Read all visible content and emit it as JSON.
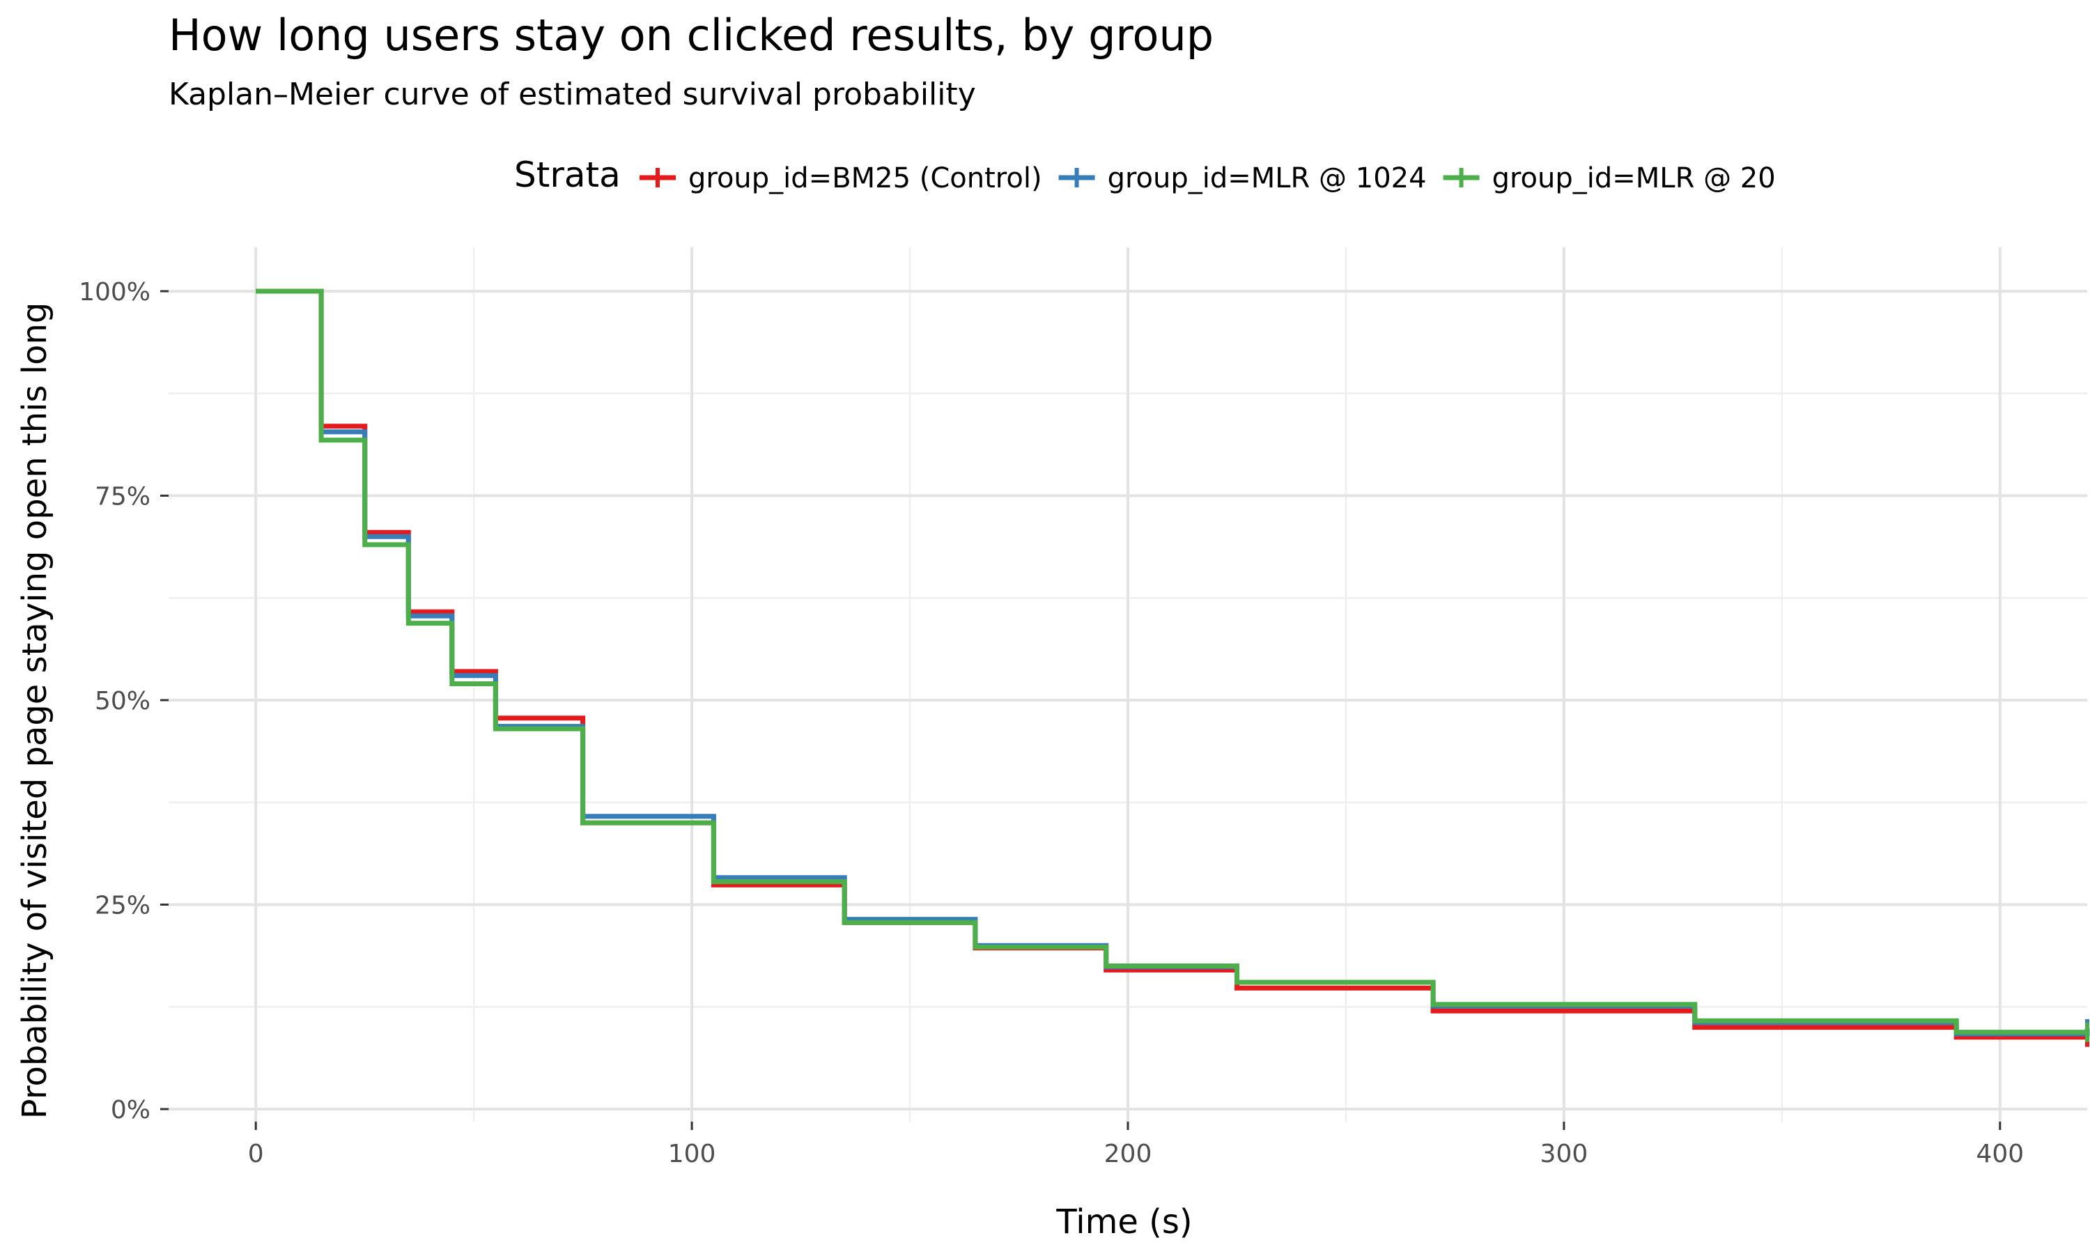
{
  "chart_data": {
    "type": "line",
    "step": true,
    "title": "How long users stay on clicked results, by group",
    "subtitle": "Kaplan–Meier curve of estimated survival probability",
    "xlabel": "Time (s)",
    "ylabel": "Probability of visited page staying open this long",
    "xlim": [
      -20,
      420
    ],
    "ylim": [
      0,
      1
    ],
    "x_ticks": [
      0,
      100,
      200,
      300,
      400
    ],
    "x_tick_labels": [
      "0",
      "100",
      "200",
      "300",
      "400"
    ],
    "y_ticks": [
      0,
      0.25,
      0.5,
      0.75,
      1
    ],
    "y_tick_labels": [
      "0%",
      "25%",
      "50%",
      "75%",
      "100%"
    ],
    "grid": true,
    "legend": {
      "title": "Strata",
      "position": "top"
    },
    "series": [
      {
        "name": "group_id=BM25 (Control)",
        "color": "#e41a1c",
        "x": [
          0,
          15,
          25,
          35,
          45,
          55,
          75,
          105,
          135,
          165,
          195,
          225,
          270,
          330,
          390,
          420
        ],
        "y": [
          1.0,
          0.835,
          0.705,
          0.608,
          0.535,
          0.478,
          0.35,
          0.274,
          0.228,
          0.197,
          0.17,
          0.148,
          0.12,
          0.1,
          0.088,
          0.088
        ]
      },
      {
        "name": "group_id=MLR @ 1024",
        "color": "#377eb8",
        "x": [
          0,
          15,
          25,
          35,
          45,
          55,
          75,
          105,
          135,
          165,
          195,
          225,
          270,
          330,
          390,
          420
        ],
        "y": [
          1.0,
          0.828,
          0.7,
          0.603,
          0.53,
          0.468,
          0.358,
          0.283,
          0.232,
          0.2,
          0.174,
          0.155,
          0.126,
          0.106,
          0.092,
          0.098
        ]
      },
      {
        "name": "group_id=MLR @ 20",
        "color": "#4daf4a",
        "x": [
          0,
          15,
          25,
          35,
          45,
          55,
          75,
          105,
          135,
          165,
          195,
          225,
          270,
          330,
          390,
          420
        ],
        "y": [
          1.0,
          0.818,
          0.69,
          0.594,
          0.52,
          0.465,
          0.35,
          0.278,
          0.228,
          0.198,
          0.175,
          0.155,
          0.128,
          0.108,
          0.094,
          0.094
        ]
      }
    ]
  }
}
